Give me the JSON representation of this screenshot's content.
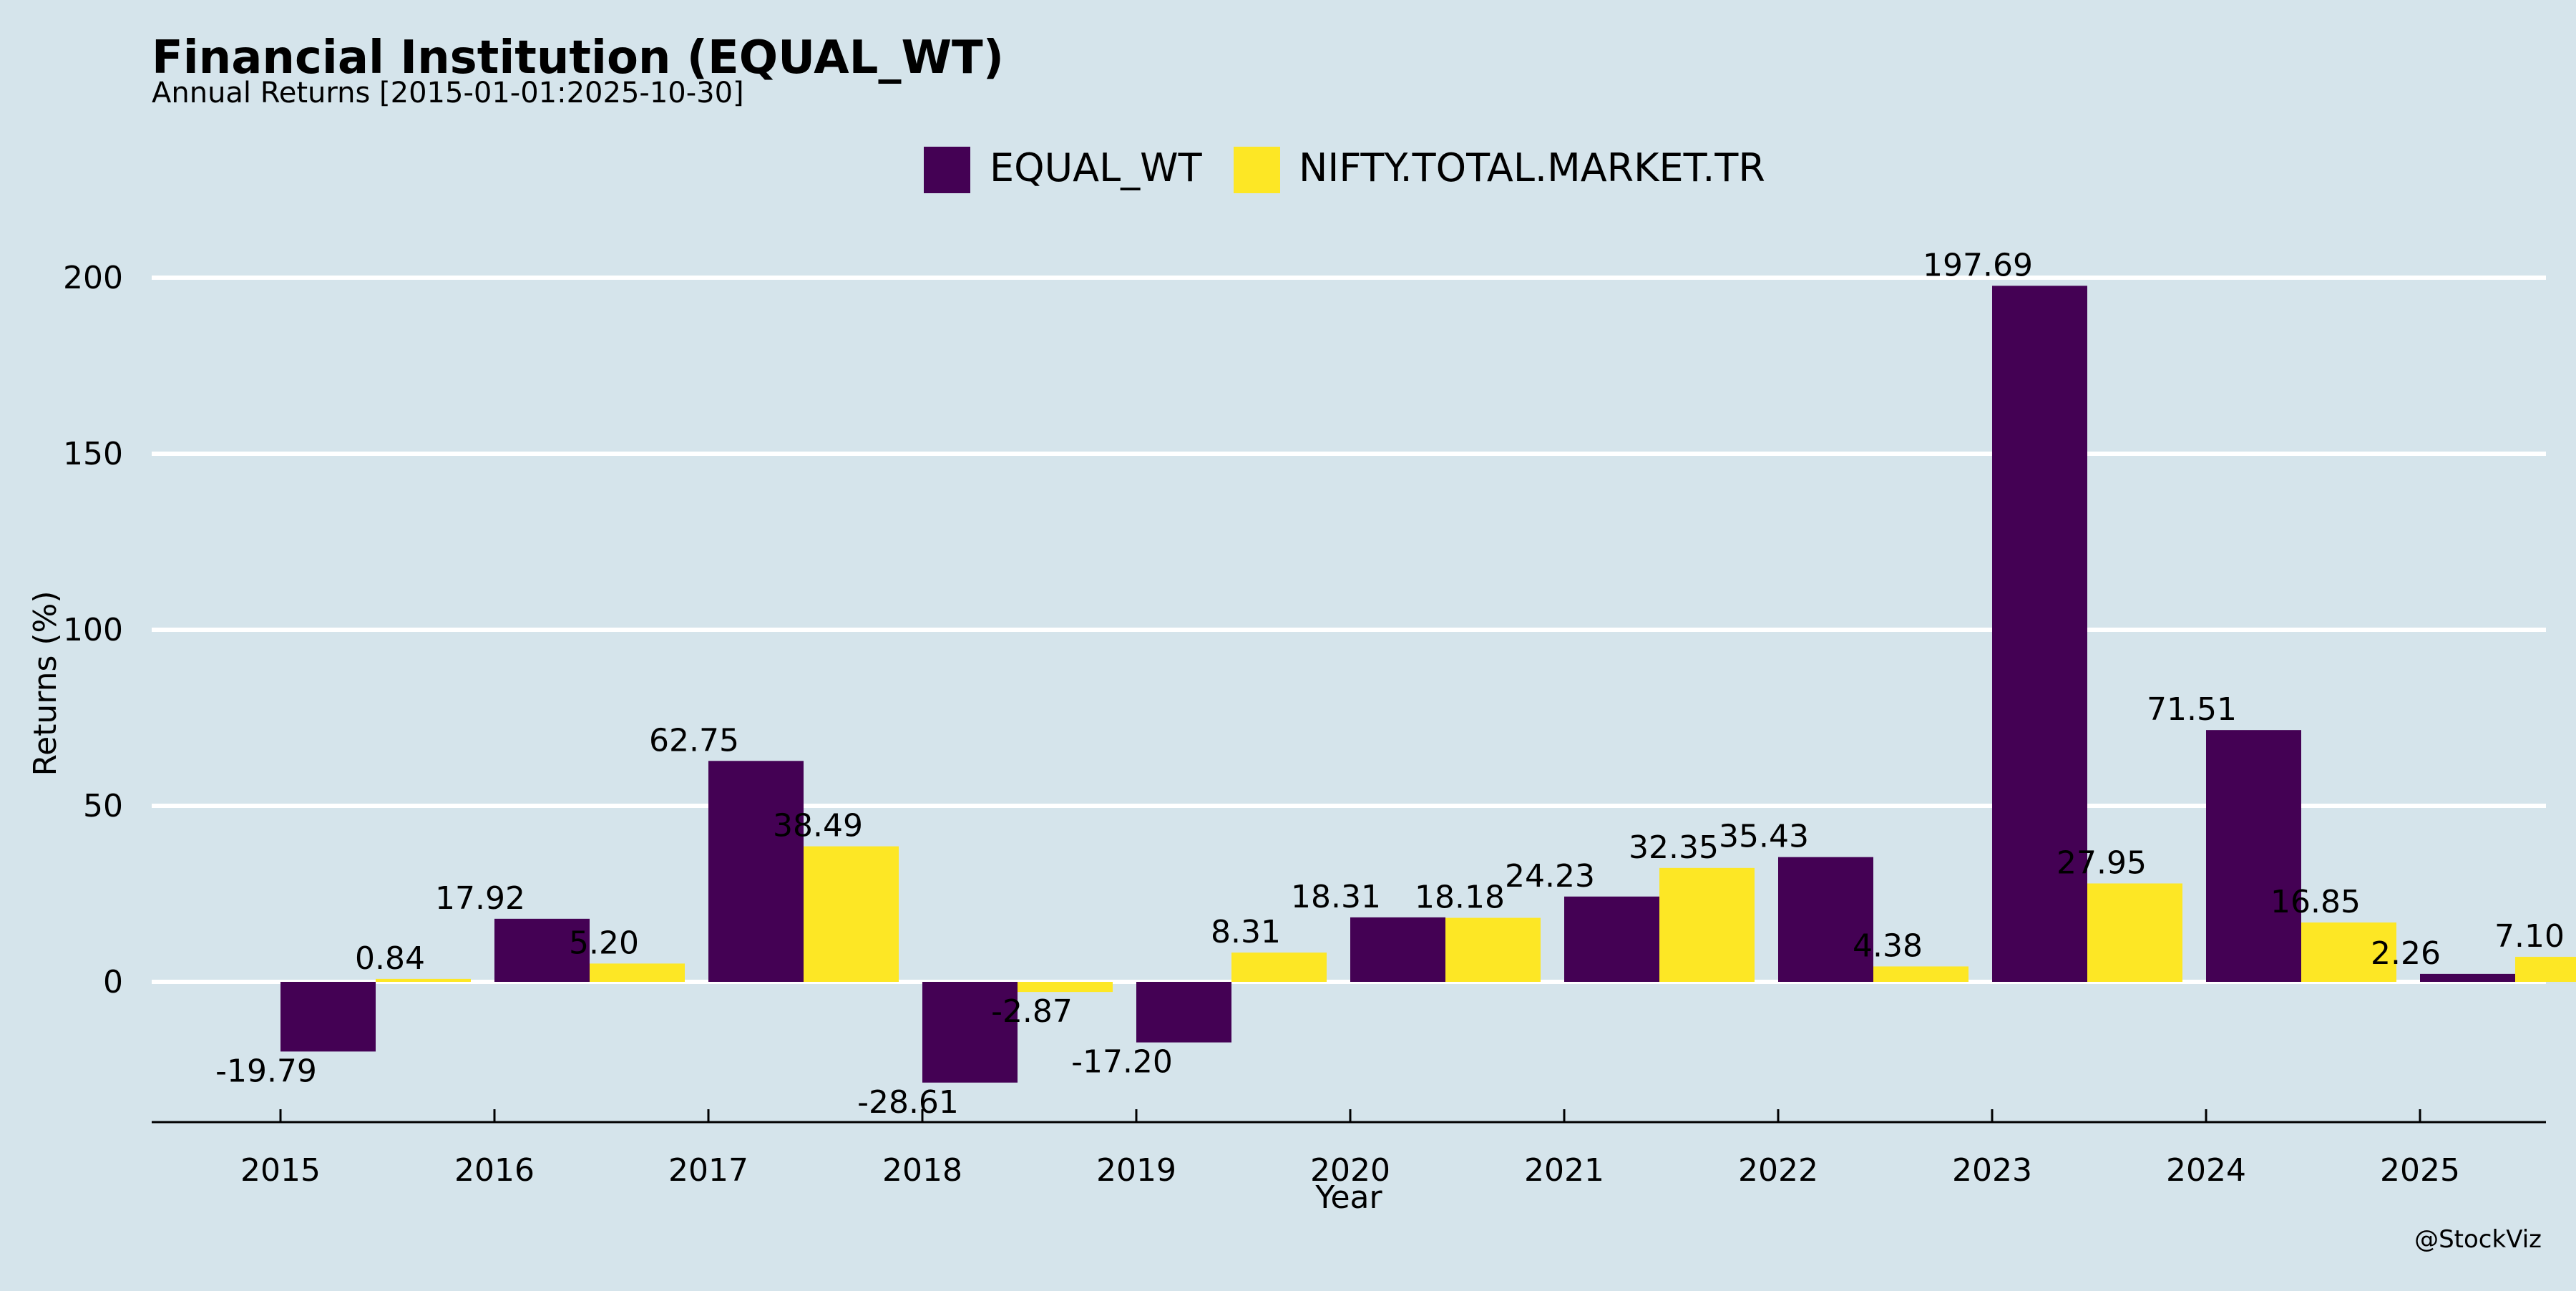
{
  "title": "Financial Institution (EQUAL_WT)",
  "subtitle": "Annual Returns [2015-01-01:2025-10-30]",
  "watermark": "@StockViz",
  "colors": {
    "background": "#d5e4eb",
    "grid": "#ffffff",
    "text": "#000000"
  },
  "chart_data": {
    "type": "bar",
    "categories": [
      "2015",
      "2016",
      "2017",
      "2018",
      "2019",
      "2020",
      "2021",
      "2022",
      "2023",
      "2024",
      "2025"
    ],
    "series": [
      {
        "name": "EQUAL_WT",
        "color": "#440154",
        "values": [
          -19.79,
          17.92,
          62.75,
          -28.61,
          -17.2,
          18.31,
          24.23,
          35.43,
          197.69,
          71.51,
          2.26
        ],
        "labels": [
          "-19.79",
          "17.92",
          "62.75",
          "-28.61",
          "-17.20",
          "18.31",
          "24.23",
          "35.43",
          "197.69",
          "71.51",
          "2.26"
        ]
      },
      {
        "name": "NIFTY.TOTAL.MARKET.TR",
        "color": "#fde725",
        "values": [
          0.84,
          5.2,
          38.49,
          -2.87,
          8.31,
          18.18,
          32.35,
          4.38,
          27.95,
          16.85,
          7.1
        ],
        "labels": [
          "0.84",
          "5.20",
          "38.49",
          "-2.87",
          "8.31",
          "18.18",
          "32.35",
          "4.38",
          "27.95",
          "16.85",
          "7.10"
        ]
      }
    ],
    "xlabel": "Year",
    "ylabel": "Returns (%)",
    "ylim": [
      -40,
      210
    ],
    "yticks": [
      0,
      50,
      100,
      150,
      200
    ],
    "ytick_labels": [
      "0",
      "50",
      "100",
      "150",
      "200"
    ],
    "grid": "horizontal",
    "legend_position": "top-center"
  }
}
